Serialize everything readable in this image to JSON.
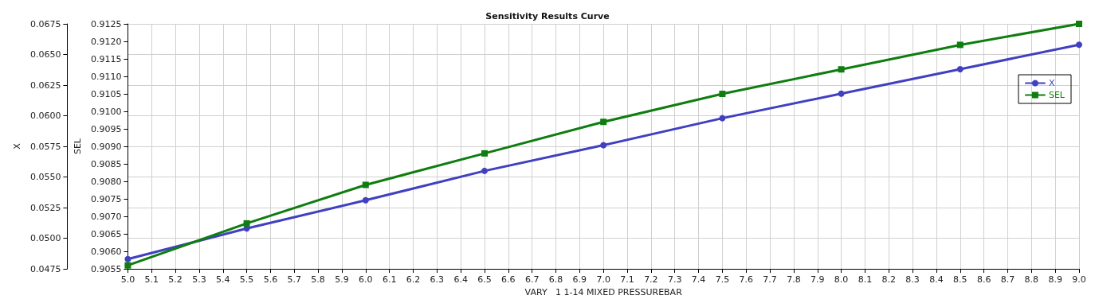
{
  "chart_data": {
    "type": "line",
    "title": "Sensitivity Results Curve",
    "xlabel": "VARY   1 1-14 MIXED PRESSUREBAR",
    "ylabel": "X",
    "y2label": "SEL",
    "x": [
      5.0,
      5.5,
      6.0,
      6.5,
      7.0,
      7.5,
      8.0,
      8.5,
      9.0
    ],
    "series": [
      {
        "name": "X",
        "color": "#4040c0",
        "marker": "circle",
        "values": [
          0.0483,
          0.0508,
          0.0531,
          0.0555,
          0.0576,
          0.0598,
          0.0618,
          0.0638,
          0.0658
        ]
      },
      {
        "name": "SEL",
        "color": "#0f7d0f",
        "marker": "square",
        "axis": "y2",
        "values": [
          0.9056,
          0.9068,
          0.9079,
          0.9088,
          0.9097,
          0.9105,
          0.9112,
          0.9119,
          0.9125
        ]
      }
    ],
    "xlim": [
      5.0,
      9.0
    ],
    "xticks": [
      {
        "value": 5.0,
        "label": "5.0"
      },
      5.1,
      5.2,
      5.3,
      5.4,
      5.5,
      5.6,
      5.7,
      5.8,
      5.9,
      {
        "value": 6.0,
        "label": "6.0"
      },
      6.1,
      6.2,
      6.3,
      6.4,
      6.5,
      6.6,
      6.7,
      6.8,
      6.9,
      {
        "value": 7.0,
        "label": "7.0"
      },
      7.1,
      7.2,
      7.3,
      7.4,
      7.5,
      7.6,
      7.7,
      7.8,
      7.9,
      {
        "value": 8.0,
        "label": "8.0"
      },
      8.1,
      8.2,
      8.3,
      8.4,
      8.5,
      8.6,
      8.7,
      8.8,
      8.9,
      {
        "value": 9.0,
        "label": "9.0"
      }
    ],
    "ylim": [
      0.0475,
      0.0675
    ],
    "yticks": [
      0.0475,
      {
        "value": 0.05,
        "label": "0.0500"
      },
      0.0525,
      {
        "value": 0.055,
        "label": "0.0550"
      },
      0.0575,
      {
        "value": 0.06,
        "label": "0.0600"
      },
      0.0625,
      {
        "value": 0.065,
        "label": "0.0650"
      },
      0.0675
    ],
    "y2lim": [
      0.9055,
      0.9125
    ],
    "y2ticks": [
      0.9055,
      {
        "value": 0.906,
        "label": "0.9060"
      },
      0.9065,
      {
        "value": 0.907,
        "label": "0.9070"
      },
      0.9075,
      {
        "value": 0.908,
        "label": "0.9080"
      },
      0.9085,
      {
        "value": 0.909,
        "label": "0.9090"
      },
      0.9095,
      {
        "value": 0.91,
        "label": "0.9100"
      },
      0.9105,
      {
        "value": 0.911,
        "label": "0.9110"
      },
      0.9115,
      {
        "value": 0.912,
        "label": "0.9120"
      },
      0.9125
    ],
    "grid": true,
    "legend": "top right",
    "line_style": "solid"
  }
}
